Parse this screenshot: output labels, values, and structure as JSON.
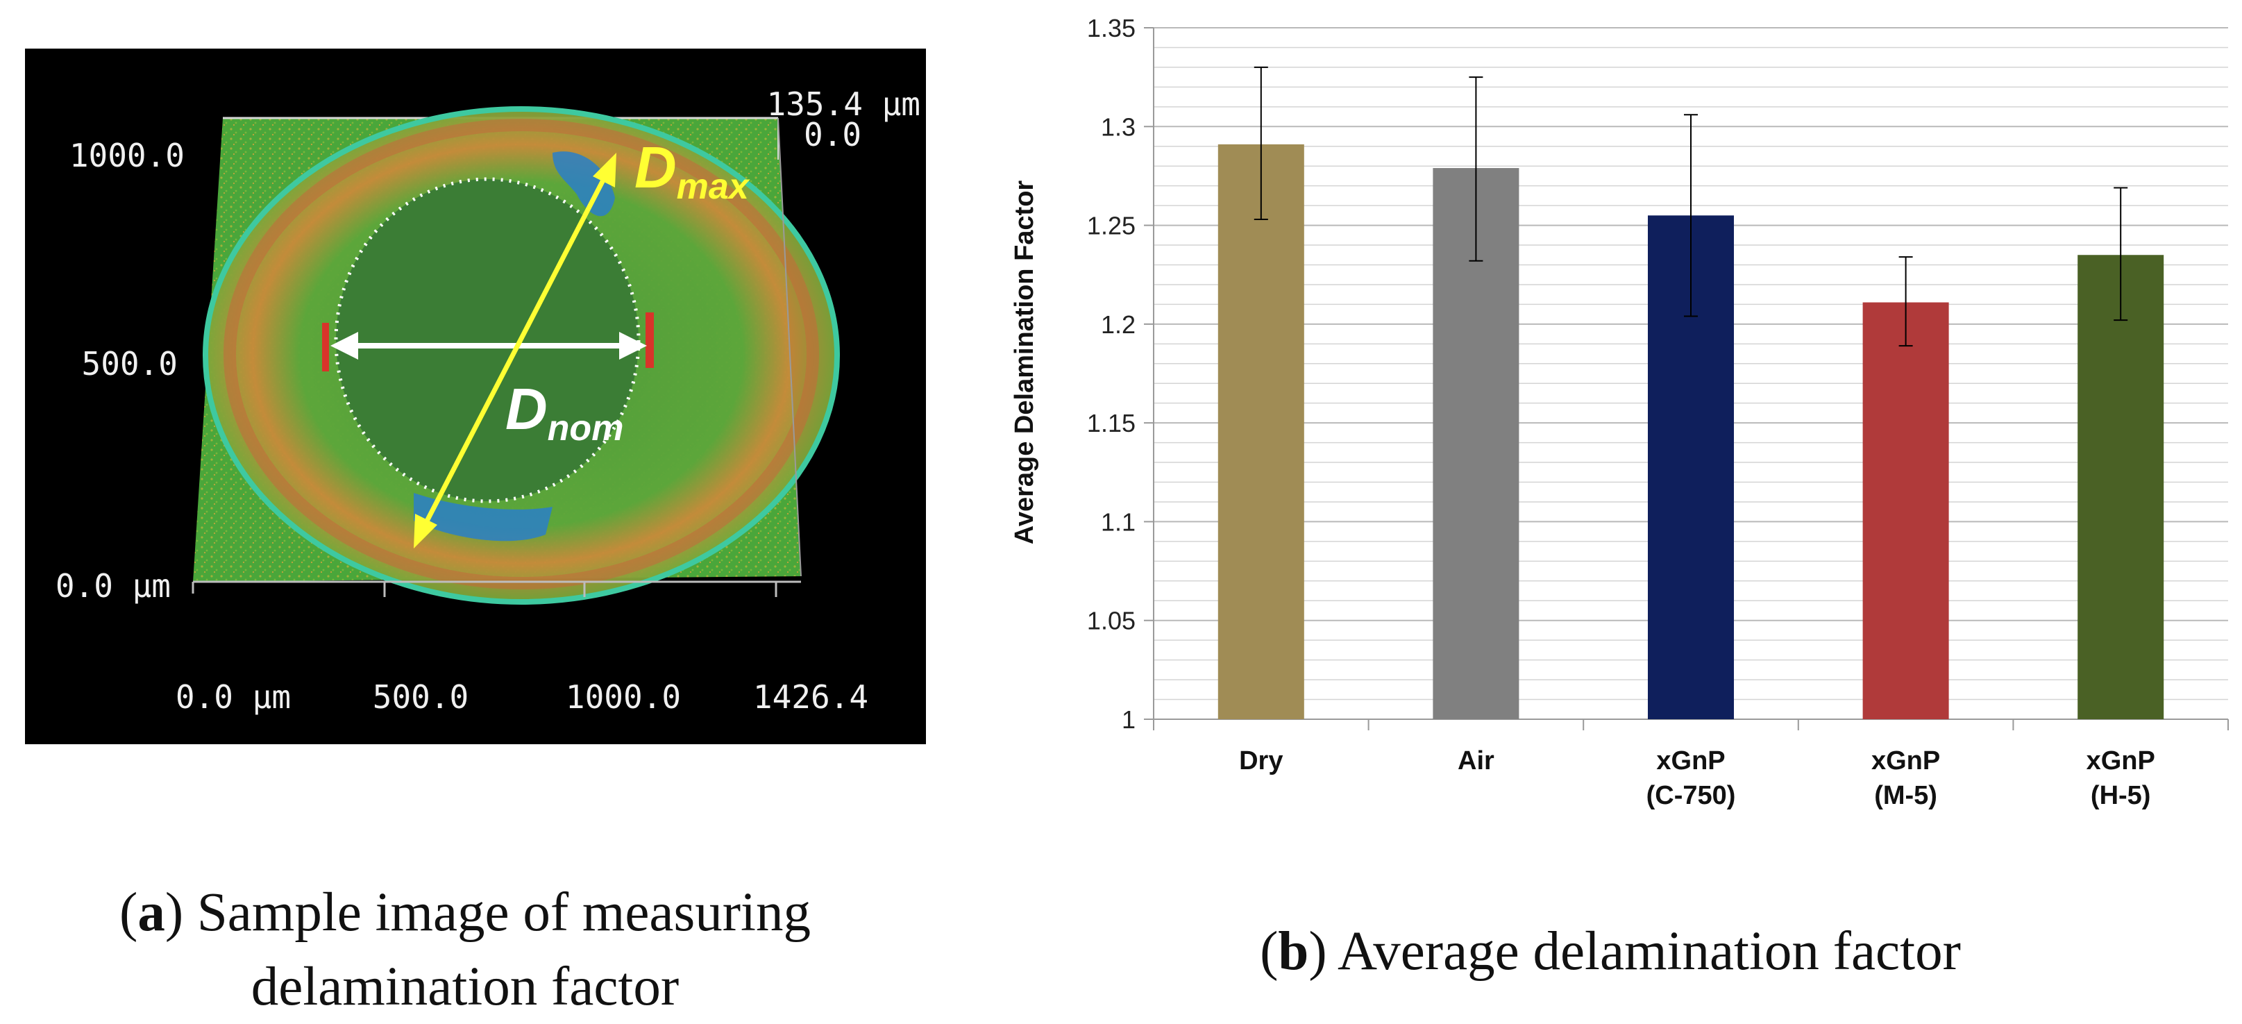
{
  "panel_a": {
    "axis_labels": {
      "y_top": "1000.0",
      "y_mid": "500.0",
      "y_bottom": "0.0 μm",
      "x_0": "0.0 μm",
      "x_500": "500.0",
      "x_1000": "1000.0",
      "x_max": "1426.4",
      "z_max": "135.4 μm",
      "z_min": "0.0"
    },
    "d_max": {
      "main": "D",
      "sub": "max"
    },
    "d_nom": {
      "main": "D",
      "sub": "nom"
    },
    "colors": {
      "surface": "#4aa63a",
      "arrow_max": "#ffff33",
      "arrow_nom": "#ffffff"
    }
  },
  "captions": {
    "a_label": "a",
    "a_text_1": ") Sample image of measuring",
    "a_text_2": "delamination factor",
    "b_label": "b",
    "b_text": ") Average delamination factor"
  },
  "chart_data": {
    "type": "bar",
    "ylabel": "Average Delamination Factor",
    "xlabel": "",
    "ylim": [
      1,
      1.35
    ],
    "y_ticks": [
      1,
      1.05,
      1.1,
      1.15,
      1.2,
      1.25,
      1.3,
      1.35
    ],
    "y_tick_labels": [
      "1",
      "1.05",
      "1.1",
      "1.15",
      "1.2",
      "1.25",
      "1.3",
      "1.35"
    ],
    "grid": true,
    "categories": [
      {
        "line1": "Dry",
        "line2": ""
      },
      {
        "line1": "Air",
        "line2": ""
      },
      {
        "line1": "xGnP",
        "line2": "(C-750)"
      },
      {
        "line1": "xGnP",
        "line2": "(M-5)"
      },
      {
        "line1": "xGnP",
        "line2": "(H-5)"
      }
    ],
    "values": [
      1.291,
      1.279,
      1.255,
      1.211,
      1.235
    ],
    "error_low": [
      1.253,
      1.232,
      1.204,
      1.189,
      1.202
    ],
    "error_high": [
      1.33,
      1.325,
      1.306,
      1.234,
      1.269
    ],
    "colors": [
      "#a08c55",
      "#808080",
      "#0f1f5c",
      "#b03a3a",
      "#4a6125"
    ]
  }
}
